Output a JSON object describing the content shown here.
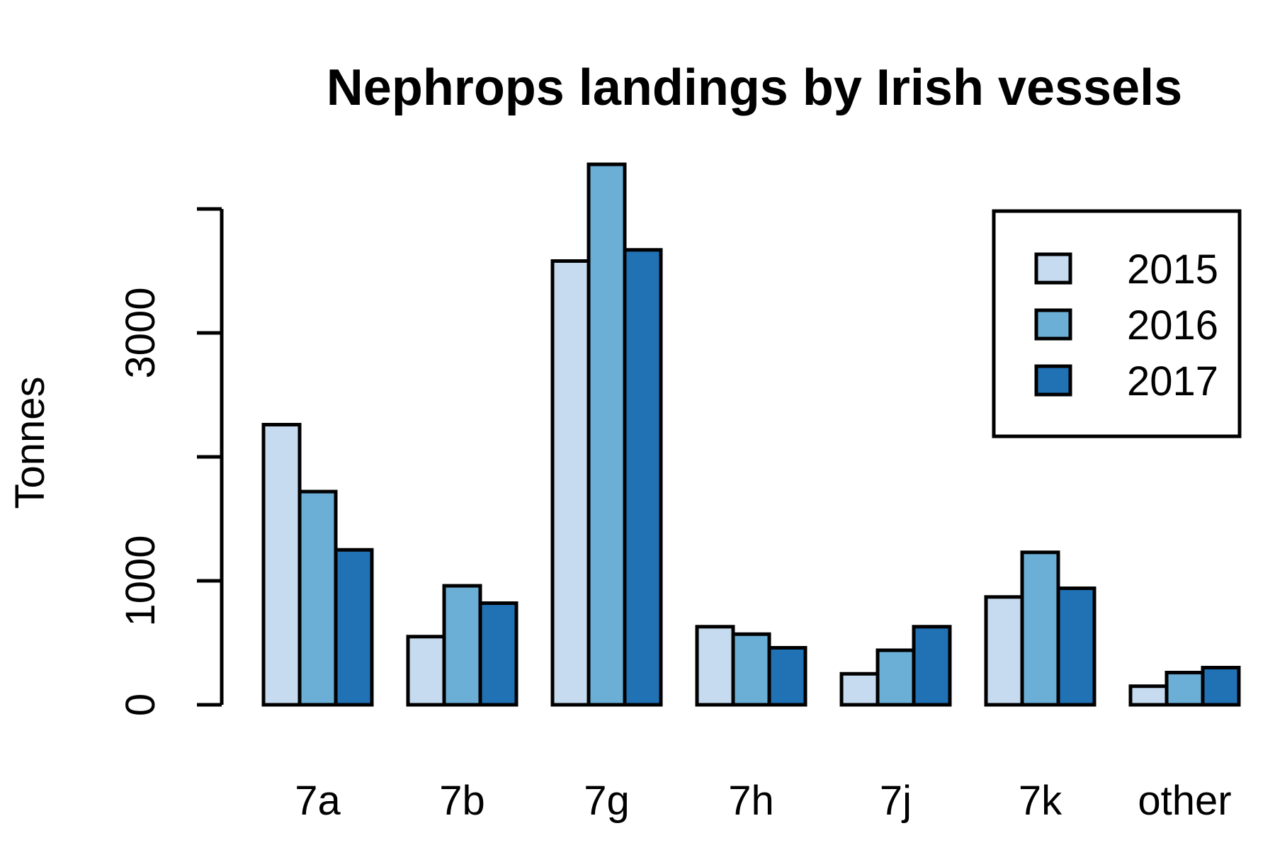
{
  "chart_data": {
    "type": "bar",
    "title": "Nephrops landings by Irish vessels",
    "xlabel": "",
    "ylabel": "Tonnes",
    "categories": [
      "7a",
      "7b",
      "7g",
      "7h",
      "7j",
      "7k",
      "other"
    ],
    "series": [
      {
        "name": "2015",
        "color": "#c6dbef",
        "values": [
          2260,
          550,
          3580,
          630,
          250,
          870,
          150
        ]
      },
      {
        "name": "2016",
        "color": "#6baed6",
        "values": [
          1720,
          960,
          4360,
          570,
          440,
          1230,
          260
        ]
      },
      {
        "name": "2017",
        "color": "#2171b5",
        "values": [
          1250,
          820,
          3670,
          460,
          630,
          940,
          300
        ]
      }
    ],
    "ylim": [
      0,
      4000
    ],
    "yticks": [
      0,
      1000,
      2000,
      3000,
      4000
    ],
    "ytick_labels": [
      "0",
      "1000",
      "",
      "3000",
      ""
    ],
    "legend_position": "top-right",
    "grid": false
  }
}
